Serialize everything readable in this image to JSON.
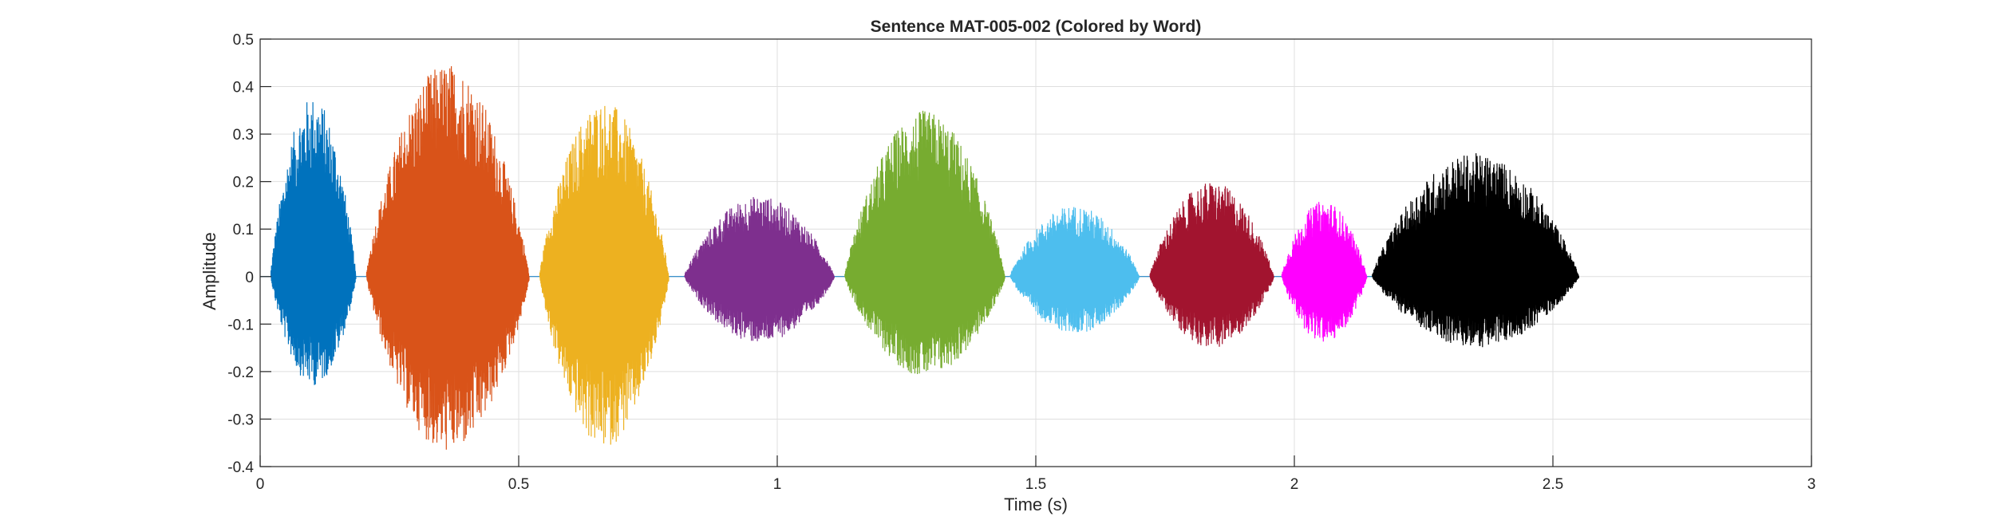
{
  "chart_data": {
    "type": "line",
    "title": "Sentence MAT-005-002 (Colored by Word)",
    "xlabel": "Time (s)",
    "ylabel": "Amplitude",
    "xlim": [
      0,
      3
    ],
    "ylim": [
      -0.4,
      0.5
    ],
    "xticks": [
      0,
      0.5,
      1,
      1.5,
      2,
      2.5,
      3
    ],
    "xtick_labels": [
      "0",
      "0.5",
      "1",
      "1.5",
      "2",
      "2.5",
      "3"
    ],
    "yticks": [
      -0.4,
      -0.3,
      -0.2,
      -0.1,
      0,
      0.1,
      0.2,
      0.3,
      0.4,
      0.5
    ],
    "ytick_labels": [
      "-0.4",
      "-0.3",
      "-0.2",
      "-0.1",
      "0",
      "0.1",
      "0.2",
      "0.3",
      "0.4",
      "0.5"
    ],
    "grid": true,
    "series": [
      {
        "color": "#0072BD",
        "start": 0.02,
        "end": 0.185,
        "max": 0.38,
        "min": -0.23
      },
      {
        "color": "#D95319",
        "start": 0.205,
        "end": 0.52,
        "max": 0.45,
        "min": -0.37
      },
      {
        "color": "#EDB120",
        "start": 0.54,
        "end": 0.79,
        "max": 0.37,
        "min": -0.36
      },
      {
        "color": "#7E2F8E",
        "start": 0.82,
        "end": 1.11,
        "max": 0.17,
        "min": -0.14
      },
      {
        "color": "#77AC30",
        "start": 1.13,
        "end": 1.44,
        "max": 0.35,
        "min": -0.21
      },
      {
        "color": "#4DBEEE",
        "start": 1.45,
        "end": 1.7,
        "max": 0.15,
        "min": -0.12
      },
      {
        "color": "#A2142F",
        "start": 1.72,
        "end": 1.96,
        "max": 0.2,
        "min": -0.15
      },
      {
        "color": "#FF00FF",
        "start": 1.975,
        "end": 2.14,
        "max": 0.16,
        "min": -0.14
      },
      {
        "color": "#000000",
        "start": 2.15,
        "end": 2.55,
        "max": 0.26,
        "min": -0.15
      }
    ]
  }
}
